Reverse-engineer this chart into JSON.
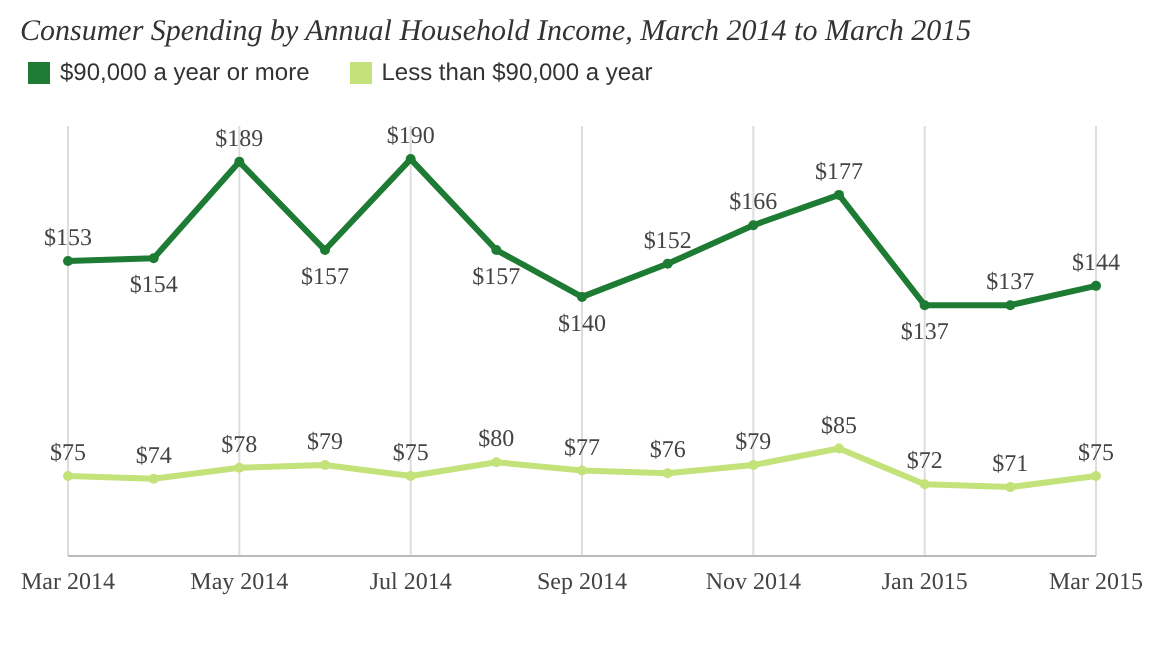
{
  "chart_data": {
    "type": "line",
    "title": "Consumer Spending by Annual Household Income, March 2014 to March 2015",
    "categories": [
      "Mar 2014",
      null,
      "May 2014",
      null,
      "Jul 2014",
      null,
      "Sep 2014",
      null,
      "Nov 2014",
      null,
      "Jan 2015",
      null,
      "Mar 2015"
    ],
    "series": [
      {
        "name": "$90,000 a year or more",
        "color": "#1e7b34",
        "values": [
          153,
          154,
          189,
          157,
          190,
          157,
          140,
          152,
          166,
          177,
          137,
          137,
          144
        ],
        "value_labels": [
          "$153",
          "$154",
          "$189",
          "$157",
          "$190",
          "$157",
          "$140",
          "$152",
          "$166",
          "$177",
          "$137",
          "$137",
          "$144"
        ]
      },
      {
        "name": "Less than $90,000 a year",
        "color": "#c3e27a",
        "values": [
          75,
          74,
          78,
          79,
          75,
          80,
          77,
          76,
          79,
          85,
          72,
          71,
          75
        ],
        "value_labels": [
          "$75",
          "$74",
          "$78",
          "$79",
          "$75",
          "$80",
          "$77",
          "$76",
          "$79",
          "$85",
          "$72",
          "$71",
          "$75"
        ]
      }
    ],
    "grid": "x",
    "legend": "top left",
    "marker": "circle",
    "line_style": "solid"
  }
}
